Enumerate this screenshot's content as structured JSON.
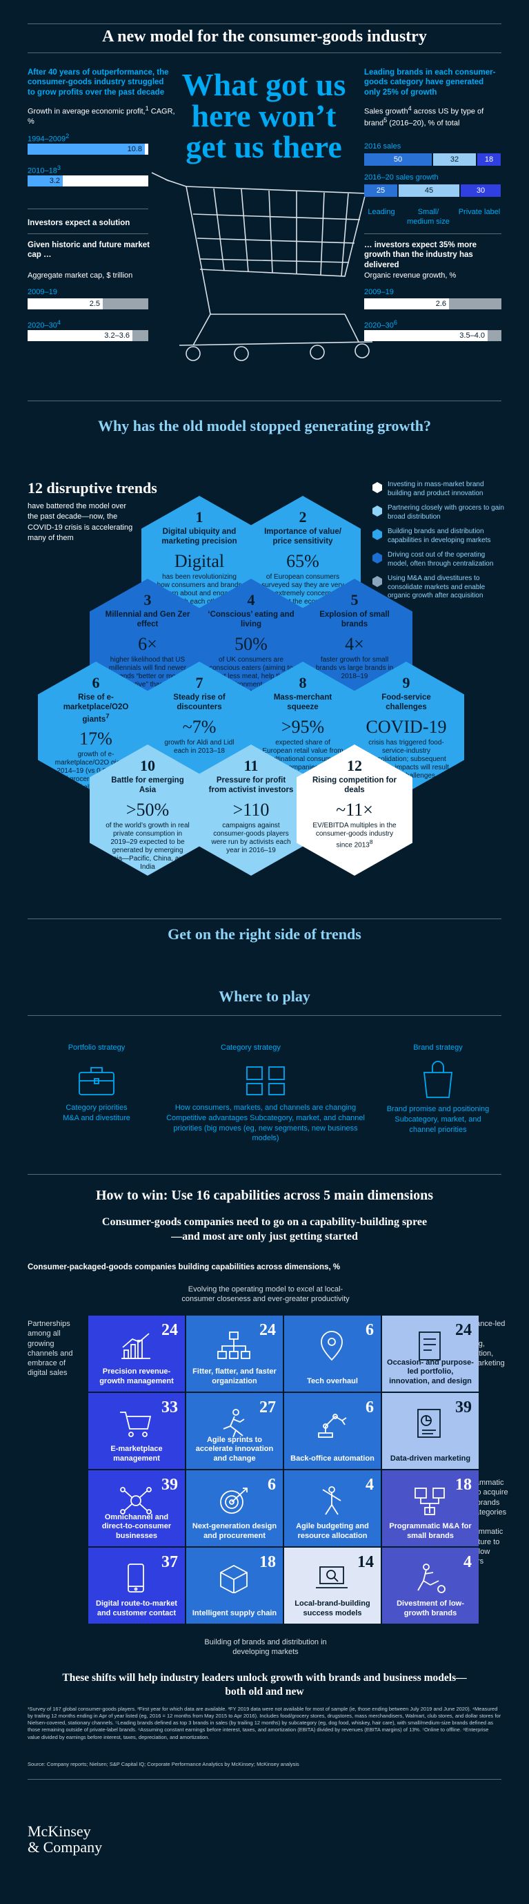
{
  "header": {
    "title": "A new model for the consumer-goods industry",
    "headline": "What got us here won’t get us there",
    "left_intro": "After 40 years of outperformance, the consumer-goods industry struggled to grow profits over the past decade",
    "growth_label": "Growth in average economic profit,",
    "growth_label_sup": "1",
    "growth_unit": " CAGR, %",
    "growth_rows": [
      {
        "period": "1994–2009",
        "sup": "2",
        "value": "10.8",
        "pct": 0.97
      },
      {
        "period": "2010–18",
        "sup": "3",
        "value": "3.2",
        "pct": 0.29
      }
    ],
    "investors_expect": "Investors expect a solution",
    "market_cap_intro": "Given historic and future market cap …",
    "market_cap_label": "Aggregate market cap, $ trillion",
    "market_cap_rows": [
      {
        "period": "2009–19",
        "sup": "",
        "value": "2.5",
        "pct": 0.62
      },
      {
        "period": "2020–30",
        "sup": "4",
        "value": "3.2–3.6",
        "pct": 0.87
      }
    ],
    "right_intro": "Leading brands in each consumer-goods category have generated only 25% of growth",
    "sales_label": "Sales growth",
    "sales_label_sup": "4",
    "sales_label_mid": " across US by type of brand",
    "sales_label_sup2": "5",
    "sales_label_end": " (2016–20), % of total",
    "sales_2016_label": "2016 sales",
    "sales_2016": [
      {
        "value": "50",
        "pct": 50,
        "color": "#2a71d6"
      },
      {
        "value": "32",
        "pct": 32,
        "color": "#97cdf5"
      },
      {
        "value": "18",
        "pct": 18,
        "color": "#2f3fe0"
      }
    ],
    "sales_growth_label": "2016–20 sales growth",
    "sales_growth": [
      {
        "value": "25",
        "pct": 25,
        "color": "#2a71d6"
      },
      {
        "value": "45",
        "pct": 45,
        "color": "#97cdf5"
      },
      {
        "value": "30",
        "pct": 30,
        "color": "#2f3fe0"
      }
    ],
    "brand_types": [
      "Leading",
      "Small/ medium size",
      "Private label"
    ],
    "investors_right": "… investors expect 35% more growth than the industry has delivered",
    "organic_label": "Organic revenue growth, %",
    "organic_rows": [
      {
        "period": "2009–19",
        "sup": "",
        "value": "2.6",
        "pct": 0.62
      },
      {
        "period": "2020–30",
        "sup": "6",
        "value": "3.5–4.0",
        "pct": 0.9
      }
    ]
  },
  "why": {
    "title": "Why has the old model stopped generating growth?",
    "trends_title": "12 disruptive trends",
    "trends_sub": "have battered the model over the past decade—now, the COVID-19 crisis is accelerating many of them",
    "legend": [
      {
        "text": "Investing in mass-market brand building and product innovation",
        "color": "#ffffff"
      },
      {
        "text": "Partnering closely with grocers to gain broad distribution",
        "color": "#8fd3f7"
      },
      {
        "text": "Building brands and distribution capabilities in developing markets",
        "color": "#2ea6ee"
      },
      {
        "text": "Driving cost out of the operating model, often through centralization",
        "color": "#1c6fd0"
      },
      {
        "text": "Using M&A and divestitures to consolidate markets and enable organic growth after acquisition",
        "color": "#8ea7c0"
      }
    ],
    "trends": [
      {
        "n": "1",
        "title": "Digital ubiquity and marketing precision",
        "value": "Digital",
        "desc": "has been revolutionizing how consumers and brands learn about and engage with each other",
        "color": "#2ea6ee"
      },
      {
        "n": "2",
        "title": "Importance of value/ price sensitivity",
        "value": "65%",
        "desc": "of European consumers surveyed say they are very or extremely concerned about the economy",
        "color": "#2ea6ee"
      },
      {
        "n": "3",
        "title": "Millennial and Gen Zer effect",
        "value": "6×",
        "desc": "higher likelihood that US millennials will find newer brands “better or more innovative” than baby boomers will",
        "color": "#1c6fd0"
      },
      {
        "n": "4",
        "title": "‘Conscious’ eating and living",
        "value": "50%",
        "desc": "of UK consumers are conscious eaters (aiming to eat less meat, help the environment, and accommodate dietary preferences)",
        "color": "#1c6fd0"
      },
      {
        "n": "5",
        "title": "Explosion of small brands",
        "value": "4×",
        "desc": "faster growth for small brands vs large brands in 2018–19",
        "color": "#1c6fd0"
      },
      {
        "n": "6",
        "title": "Rise of e-marketplace/O2O giants",
        "title_sup": "7",
        "value": "17%",
        "desc": "growth of e-marketplace/O2O giants in 2014–19 (vs 0.8% growth of grocers); generated ~55% of all growth across top 150 retailers",
        "color": "#2ea6ee"
      },
      {
        "n": "7",
        "title": "Steady rise of discounters",
        "value": "~7%",
        "desc": "growth for Aldi and Lidl each in 2013–18",
        "color": "#2ea6ee"
      },
      {
        "n": "8",
        "title": "Mass-merchant squeeze",
        "value": ">95%",
        "desc": "expected share of European retail value from multinational consumer-goods companies bought through alliances in 2025",
        "color": "#2ea6ee"
      },
      {
        "n": "9",
        "title": "Food-service challenges",
        "value": "COVID-19",
        "desc": "crisis has triggered food-service-industry consolidation; subsequent economic impacts will result in more challenges",
        "color": "#2ea6ee"
      },
      {
        "n": "10",
        "title": "Battle for emerging Asia",
        "value": ">50%",
        "desc": "of the world’s growth in real private consumption in 2019–29 expected to be generated by emerging Asia—Pacific, China, and India",
        "color": "#8fd3f7"
      },
      {
        "n": "11",
        "title": "Pressure for profit from activist investors",
        "value": ">110",
        "desc": "campaigns against consumer-goods players were run by activists each year in 2016–19",
        "color": "#8fd3f7"
      },
      {
        "n": "12",
        "title": "Rising competition for deals",
        "value": "~11×",
        "desc": "EV/EBITDA multiples in the consumer-goods industry since 2013",
        "desc_sup": "8",
        "color": "#ffffff"
      }
    ]
  },
  "right_side": {
    "title": "Get on the right side of trends",
    "where_title": "Where to play",
    "portfolio_title": "Portfolio strategy",
    "portfolio_desc": "Category priorities M&A and divestiture",
    "category_title": "Category strategy",
    "category_desc": "How consumers, markets, and channels are changing Competitive advantages Subcategory, market, and channel priorities (big moves (eg, new segments, new business models)",
    "brand_title": "Brand strategy",
    "brand_desc": "Brand promise and positioning Subcategory, market, and channel priorities"
  },
  "how": {
    "title": "How to win: Use 16 capabilities across 5 main dimensions",
    "subtitle": "Consumer-goods companies need to go on a capability-building spree—and most are only just getting started",
    "chart_label": "Consumer-packaged-goods companies building capabilities across dimensions, %",
    "top_label": "Evolving the operating model to excel at local-consumer closeness and ever-greater productivity",
    "bottom_label": "Building of brands and distribution in developing markets",
    "left_label": "Partnerships among all growing channels and embrace of digital sales",
    "right_label_1": "Relevance-led brand building, innovation, and marketing",
    "right_label_2": "Programmatic M&A to acquire small brands and categories and programmatic divestiture to divest low growers",
    "capabilities": [
      {
        "value": "24",
        "label": "Precision revenue-growth management",
        "icon": "bar-chart-icon",
        "col": 0,
        "row": 0,
        "color": "#2f3fe0"
      },
      {
        "value": "24",
        "label": "Fitter, flatter, and faster organization",
        "icon": "org-chart-icon",
        "col": 1,
        "row": 0,
        "color": "#2a71d6"
      },
      {
        "value": "6",
        "label": "Tech overhaul",
        "icon": "location-pin-icon",
        "col": 2,
        "row": 0,
        "color": "#2a71d6"
      },
      {
        "value": "24",
        "label": "Occasion- and purpose-led portfolio, innovation, and design",
        "icon": "document-icon",
        "col": 3,
        "row": 0,
        "color": "#a8c3f0"
      },
      {
        "value": "33",
        "label": "E-marketplace management",
        "icon": "cart-icon",
        "col": 0,
        "row": 1,
        "color": "#2f3fe0"
      },
      {
        "value": "27",
        "label": "Agile sprints to accelerate innovation and change",
        "icon": "runner-icon",
        "col": 1,
        "row": 1,
        "color": "#2a71d6"
      },
      {
        "value": "6",
        "label": "Back-office automation",
        "icon": "robot-arm-icon",
        "col": 2,
        "row": 1,
        "color": "#2a71d6"
      },
      {
        "value": "39",
        "label": "Data-driven marketing",
        "icon": "data-report-icon",
        "col": 3,
        "row": 1,
        "color": "#a8c3f0"
      },
      {
        "value": "39",
        "label": "Omnichannel and direct-to-consumer businesses",
        "icon": "network-icon",
        "col": 0,
        "row": 2,
        "color": "#2f3fe0"
      },
      {
        "value": "6",
        "label": "Next-generation design and procurement",
        "icon": "target-icon",
        "col": 1,
        "row": 2,
        "color": "#2a71d6"
      },
      {
        "value": "4",
        "label": "Agile budgeting and resource allocation",
        "icon": "person-icon",
        "col": 2,
        "row": 2,
        "color": "#2a71d6"
      },
      {
        "value": "18",
        "label": "Programmatic M&A for small brands",
        "icon": "merge-icon",
        "col": 3,
        "row": 2,
        "color": "#4a54c8"
      },
      {
        "value": "37",
        "label": "Digital route-to-market and customer contact",
        "icon": "phone-icon",
        "col": 0,
        "row": 3,
        "color": "#2f3fe0"
      },
      {
        "value": "18",
        "label": "Intelligent supply chain",
        "icon": "box-icon",
        "col": 1,
        "row": 3,
        "color": "#2a71d6"
      },
      {
        "value": "14",
        "label": "Local-brand-building success models",
        "icon": "laptop-search-icon",
        "col": 2,
        "row": 3,
        "color": "#dfe6f6"
      },
      {
        "value": "4",
        "label": "Divestment of low-growth brands",
        "icon": "kick-icon",
        "col": 3,
        "row": 3,
        "color": "#4a54c8"
      }
    ],
    "closing": "These shifts will help industry leaders unlock growth with brands and business models—both old and new"
  },
  "footnotes": "¹Survey of 167 global consumer-goods players. ²First year for which data are available. ³FY 2019 data were not available for most of sample (ie, those ending between July 2019 and June 2020). ⁴Measured by trailing 12 months ending in Apr of year listed (eg, 2016 = 12 months from May 2015 to Apr 2016). Includes food/grocery stores, drugstores, mass merchandisers, Walmart, club stores, and dollar stores for Nielsen-covered, stationary channels. ⁵Leading brands defined as top 3 brands in sales (by trailing 12 months) by subcategory (eg, dog food, whiskey, hair care), with small/medium-size brands defined as those remaining outside of private-label brands. ⁶Assuming constant earnings before interest, taxes, and amortization (EBITA) divided by revenues (EBITA margins) of 13%. ⁷Online to offline. ⁸Enterprise value divided by earnings before interest, taxes, depreciation, and amortization.",
  "source": "Source: Company reports; Nielsen; S&P Capital IQ; Corporate Performance Analytics by McKinsey; McKinsey analysis",
  "brand": {
    "line1": "McKinsey",
    "line2": "& Company"
  }
}
